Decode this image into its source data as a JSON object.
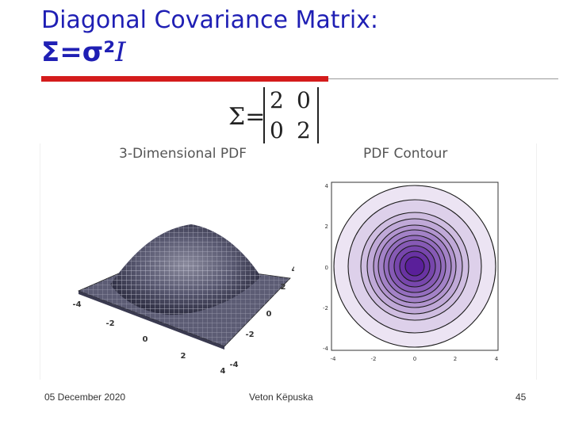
{
  "title": {
    "line1": "Diagonal Covariance Matrix:",
    "line2_bold": "Σ=σ²",
    "line2_italic": "I"
  },
  "matrix": {
    "symbol": "Σ=",
    "cells": [
      "2",
      "0",
      "0",
      "2"
    ]
  },
  "figures": {
    "left_title": "3-Dimensional PDF",
    "right_title": "PDF Contour",
    "surface_axis_labels": [
      "-4",
      "-2",
      "0",
      "2",
      "4",
      "4",
      "2",
      "0",
      "-2",
      "-4"
    ],
    "contour_y_ticks": [
      "4",
      "2",
      "0",
      "-2",
      "-4"
    ],
    "contour_x_ticks": [
      "-4",
      "-2",
      "0",
      "2",
      "4"
    ],
    "contour_colors": {
      "outer": "#ece4f3",
      "inner": "#5a1f9a"
    }
  },
  "footer": {
    "date": "05 December 2020",
    "author": "Veton Këpuska",
    "page": "45"
  }
}
